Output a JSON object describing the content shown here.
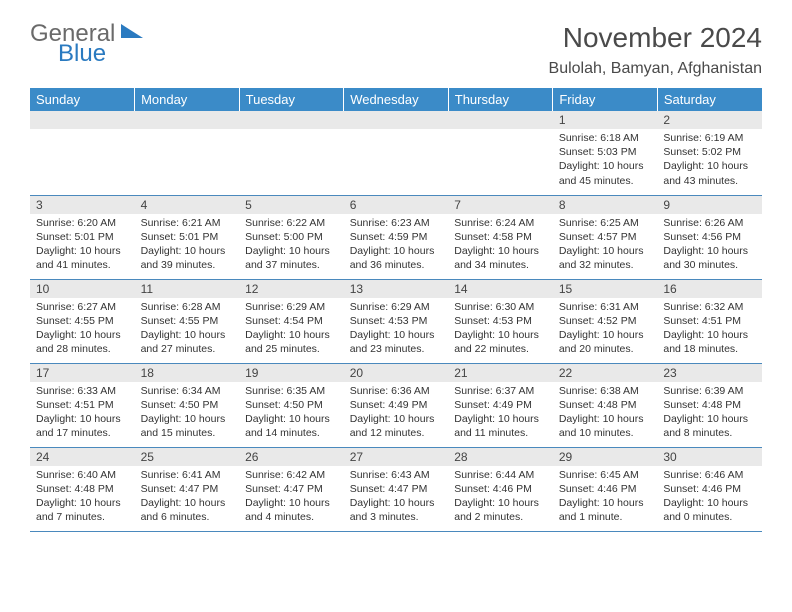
{
  "brand": {
    "part1": "General",
    "part2": "Blue"
  },
  "title": "November 2024",
  "location": "Bulolah, Bamyan, Afghanistan",
  "colors": {
    "header_bg": "#3b8bc8",
    "header_text": "#ffffff",
    "daynum_bg": "#e9e9e9",
    "row_border": "#4a89bd",
    "body_text": "#333333",
    "title_text": "#4a4a4a",
    "logo_gray": "#6a6a6a",
    "logo_blue": "#2a7ac0"
  },
  "layout": {
    "cols": 7,
    "rows": 5,
    "title_fontsize": 28,
    "loc_fontsize": 16,
    "head_fontsize": 13,
    "day_fontsize": 12,
    "text_fontsize": 10.5
  },
  "weekdays": [
    "Sunday",
    "Monday",
    "Tuesday",
    "Wednesday",
    "Thursday",
    "Friday",
    "Saturday"
  ],
  "weeks": [
    [
      null,
      null,
      null,
      null,
      null,
      {
        "n": "1",
        "sr": "Sunrise: 6:18 AM",
        "ss": "Sunset: 5:03 PM",
        "dl": "Daylight: 10 hours and 45 minutes."
      },
      {
        "n": "2",
        "sr": "Sunrise: 6:19 AM",
        "ss": "Sunset: 5:02 PM",
        "dl": "Daylight: 10 hours and 43 minutes."
      }
    ],
    [
      {
        "n": "3",
        "sr": "Sunrise: 6:20 AM",
        "ss": "Sunset: 5:01 PM",
        "dl": "Daylight: 10 hours and 41 minutes."
      },
      {
        "n": "4",
        "sr": "Sunrise: 6:21 AM",
        "ss": "Sunset: 5:01 PM",
        "dl": "Daylight: 10 hours and 39 minutes."
      },
      {
        "n": "5",
        "sr": "Sunrise: 6:22 AM",
        "ss": "Sunset: 5:00 PM",
        "dl": "Daylight: 10 hours and 37 minutes."
      },
      {
        "n": "6",
        "sr": "Sunrise: 6:23 AM",
        "ss": "Sunset: 4:59 PM",
        "dl": "Daylight: 10 hours and 36 minutes."
      },
      {
        "n": "7",
        "sr": "Sunrise: 6:24 AM",
        "ss": "Sunset: 4:58 PM",
        "dl": "Daylight: 10 hours and 34 minutes."
      },
      {
        "n": "8",
        "sr": "Sunrise: 6:25 AM",
        "ss": "Sunset: 4:57 PM",
        "dl": "Daylight: 10 hours and 32 minutes."
      },
      {
        "n": "9",
        "sr": "Sunrise: 6:26 AM",
        "ss": "Sunset: 4:56 PM",
        "dl": "Daylight: 10 hours and 30 minutes."
      }
    ],
    [
      {
        "n": "10",
        "sr": "Sunrise: 6:27 AM",
        "ss": "Sunset: 4:55 PM",
        "dl": "Daylight: 10 hours and 28 minutes."
      },
      {
        "n": "11",
        "sr": "Sunrise: 6:28 AM",
        "ss": "Sunset: 4:55 PM",
        "dl": "Daylight: 10 hours and 27 minutes."
      },
      {
        "n": "12",
        "sr": "Sunrise: 6:29 AM",
        "ss": "Sunset: 4:54 PM",
        "dl": "Daylight: 10 hours and 25 minutes."
      },
      {
        "n": "13",
        "sr": "Sunrise: 6:29 AM",
        "ss": "Sunset: 4:53 PM",
        "dl": "Daylight: 10 hours and 23 minutes."
      },
      {
        "n": "14",
        "sr": "Sunrise: 6:30 AM",
        "ss": "Sunset: 4:53 PM",
        "dl": "Daylight: 10 hours and 22 minutes."
      },
      {
        "n": "15",
        "sr": "Sunrise: 6:31 AM",
        "ss": "Sunset: 4:52 PM",
        "dl": "Daylight: 10 hours and 20 minutes."
      },
      {
        "n": "16",
        "sr": "Sunrise: 6:32 AM",
        "ss": "Sunset: 4:51 PM",
        "dl": "Daylight: 10 hours and 18 minutes."
      }
    ],
    [
      {
        "n": "17",
        "sr": "Sunrise: 6:33 AM",
        "ss": "Sunset: 4:51 PM",
        "dl": "Daylight: 10 hours and 17 minutes."
      },
      {
        "n": "18",
        "sr": "Sunrise: 6:34 AM",
        "ss": "Sunset: 4:50 PM",
        "dl": "Daylight: 10 hours and 15 minutes."
      },
      {
        "n": "19",
        "sr": "Sunrise: 6:35 AM",
        "ss": "Sunset: 4:50 PM",
        "dl": "Daylight: 10 hours and 14 minutes."
      },
      {
        "n": "20",
        "sr": "Sunrise: 6:36 AM",
        "ss": "Sunset: 4:49 PM",
        "dl": "Daylight: 10 hours and 12 minutes."
      },
      {
        "n": "21",
        "sr": "Sunrise: 6:37 AM",
        "ss": "Sunset: 4:49 PM",
        "dl": "Daylight: 10 hours and 11 minutes."
      },
      {
        "n": "22",
        "sr": "Sunrise: 6:38 AM",
        "ss": "Sunset: 4:48 PM",
        "dl": "Daylight: 10 hours and 10 minutes."
      },
      {
        "n": "23",
        "sr": "Sunrise: 6:39 AM",
        "ss": "Sunset: 4:48 PM",
        "dl": "Daylight: 10 hours and 8 minutes."
      }
    ],
    [
      {
        "n": "24",
        "sr": "Sunrise: 6:40 AM",
        "ss": "Sunset: 4:48 PM",
        "dl": "Daylight: 10 hours and 7 minutes."
      },
      {
        "n": "25",
        "sr": "Sunrise: 6:41 AM",
        "ss": "Sunset: 4:47 PM",
        "dl": "Daylight: 10 hours and 6 minutes."
      },
      {
        "n": "26",
        "sr": "Sunrise: 6:42 AM",
        "ss": "Sunset: 4:47 PM",
        "dl": "Daylight: 10 hours and 4 minutes."
      },
      {
        "n": "27",
        "sr": "Sunrise: 6:43 AM",
        "ss": "Sunset: 4:47 PM",
        "dl": "Daylight: 10 hours and 3 minutes."
      },
      {
        "n": "28",
        "sr": "Sunrise: 6:44 AM",
        "ss": "Sunset: 4:46 PM",
        "dl": "Daylight: 10 hours and 2 minutes."
      },
      {
        "n": "29",
        "sr": "Sunrise: 6:45 AM",
        "ss": "Sunset: 4:46 PM",
        "dl": "Daylight: 10 hours and 1 minute."
      },
      {
        "n": "30",
        "sr": "Sunrise: 6:46 AM",
        "ss": "Sunset: 4:46 PM",
        "dl": "Daylight: 10 hours and 0 minutes."
      }
    ]
  ]
}
